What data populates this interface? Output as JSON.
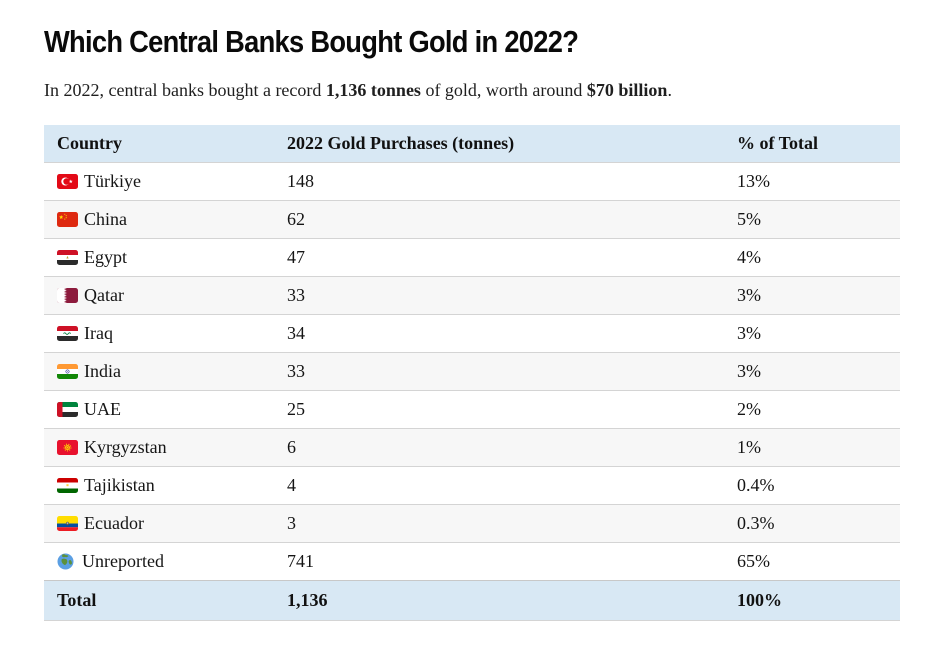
{
  "page": {
    "title": "Which Central Banks Bought Gold in 2022?",
    "subtitle_parts": [
      {
        "text": "In 2022, central banks bought a record ",
        "bold": false
      },
      {
        "text": "1,136 tonnes",
        "bold": true
      },
      {
        "text": " of gold, worth around ",
        "bold": false
      },
      {
        "text": "$70 billion",
        "bold": true
      },
      {
        "text": ".",
        "bold": false
      }
    ]
  },
  "table": {
    "columns": [
      "Country",
      "2022 Gold Purchases (tonnes)",
      "% of Total"
    ],
    "rows": [
      {
        "country": "Türkiye",
        "flag": "turkiye",
        "tonnes": "148",
        "pct": "13%"
      },
      {
        "country": "China",
        "flag": "china",
        "tonnes": "62",
        "pct": "5%"
      },
      {
        "country": "Egypt",
        "flag": "egypt",
        "tonnes": "47",
        "pct": "4%"
      },
      {
        "country": "Qatar",
        "flag": "qatar",
        "tonnes": "33",
        "pct": "3%"
      },
      {
        "country": "Iraq",
        "flag": "iraq",
        "tonnes": "34",
        "pct": "3%"
      },
      {
        "country": "India",
        "flag": "india",
        "tonnes": "33",
        "pct": "3%"
      },
      {
        "country": "UAE",
        "flag": "uae",
        "tonnes": "25",
        "pct": "2%"
      },
      {
        "country": "Kyrgyzstan",
        "flag": "kyrgyzstan",
        "tonnes": "6",
        "pct": "1%"
      },
      {
        "country": "Tajikistan",
        "flag": "tajikistan",
        "tonnes": "4",
        "pct": "0.4%"
      },
      {
        "country": "Ecuador",
        "flag": "ecuador",
        "tonnes": "3",
        "pct": "0.3%"
      },
      {
        "country": "Unreported",
        "flag": "globe",
        "tonnes": "741",
        "pct": "65%"
      }
    ],
    "total": {
      "label": "Total",
      "tonnes": "1,136",
      "pct": "100%"
    }
  },
  "colors": {
    "header_bg": "#d8e8f4",
    "alt_row_bg": "#f7f7f7",
    "row_border": "#d4d4d4",
    "text": "#1a1a1a"
  },
  "chart_data": {
    "type": "table",
    "title": "Which Central Banks Bought Gold in 2022?",
    "subtitle": "In 2022, central banks bought a record 1,136 tonnes of gold, worth around $70 billion.",
    "columns": [
      "Country",
      "2022 Gold Purchases (tonnes)",
      "% of Total"
    ],
    "rows": [
      [
        "Türkiye",
        148,
        "13%"
      ],
      [
        "China",
        62,
        "5%"
      ],
      [
        "Egypt",
        47,
        "4%"
      ],
      [
        "Qatar",
        33,
        "3%"
      ],
      [
        "Iraq",
        34,
        "3%"
      ],
      [
        "India",
        33,
        "3%"
      ],
      [
        "UAE",
        25,
        "2%"
      ],
      [
        "Kyrgyzstan",
        6,
        "1%"
      ],
      [
        "Tajikistan",
        4,
        "0.4%"
      ],
      [
        "Ecuador",
        3,
        "0.3%"
      ],
      [
        "Unreported",
        741,
        "65%"
      ]
    ],
    "total": [
      "Total",
      1136,
      "100%"
    ]
  }
}
